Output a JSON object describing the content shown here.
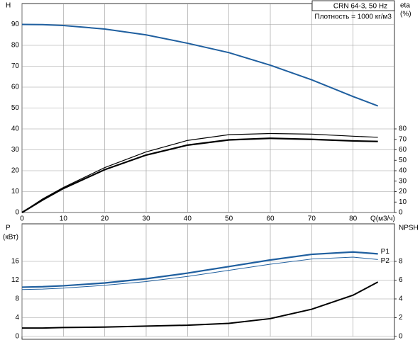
{
  "chart_data": [
    {
      "type": "line",
      "title": "CRN 64-3, 50 Hz",
      "subtitle": "Плотность = 1000 кг/м3",
      "y_label": "H",
      "y2_label": "eta",
      "y2_unit": "(%)",
      "x_label": "Q(м3/ч)",
      "x": [
        0,
        5,
        10,
        20,
        30,
        40,
        50,
        60,
        70,
        80,
        86
      ],
      "xlim": [
        0,
        90
      ],
      "xticks": [
        0,
        10,
        20,
        30,
        40,
        50,
        60,
        70,
        80
      ],
      "ylim": [
        0,
        100
      ],
      "yticks": [
        0,
        10,
        20,
        30,
        40,
        50,
        60,
        70,
        80,
        90
      ],
      "y2lim": [
        0,
        200
      ],
      "y2ticks": [
        0,
        10,
        20,
        30,
        40,
        50,
        60,
        70,
        80
      ],
      "grid": true,
      "series": [
        {
          "color": "#1f5f9f",
          "width": 2,
          "values": [
            90,
            89.9,
            89.5,
            87.8,
            85,
            81,
            76.5,
            70.5,
            63.5,
            55.5,
            51
          ]
        },
        {
          "color": "#000000",
          "width": 1.2,
          "axis": "y2",
          "values": [
            0,
            13,
            24,
            43,
            58,
            69,
            74.5,
            75.6,
            75,
            73,
            72
          ]
        },
        {
          "color": "#000000",
          "width": 2.2,
          "axis": "y2",
          "values": [
            0,
            12,
            23,
            41,
            55,
            64.5,
            69.5,
            71,
            70,
            68.5,
            68
          ]
        }
      ]
    },
    {
      "type": "line",
      "y_label": "P",
      "y_unit": "(кВт)",
      "y2_label": "NPSH",
      "x": [
        0,
        5,
        10,
        20,
        30,
        40,
        50,
        60,
        70,
        80,
        86
      ],
      "xlim": [
        0,
        90
      ],
      "ylim": [
        0,
        24
      ],
      "yticks": [
        0,
        4,
        8,
        12,
        16
      ],
      "y2lim": [
        0,
        12
      ],
      "y2ticks": [
        0,
        2,
        4,
        6,
        8
      ],
      "grid": true,
      "series": [
        {
          "name": "P1",
          "color": "#1f5f9f",
          "width": 2.2,
          "values": [
            10.5,
            10.6,
            10.8,
            11.4,
            12.3,
            13.5,
            14.9,
            16.3,
            17.5,
            18,
            17.6
          ]
        },
        {
          "name": "P2",
          "color": "#1f5f9f",
          "width": 1,
          "values": [
            10,
            10.1,
            10.3,
            10.9,
            11.7,
            12.8,
            14.1,
            15.4,
            16.5,
            16.9,
            16.4
          ]
        },
        {
          "color": "#000000",
          "width": 2,
          "axis": "y2",
          "values": [
            0.9,
            0.9,
            0.95,
            1,
            1.1,
            1.2,
            1.4,
            1.9,
            2.9,
            4.4,
            5.8
          ]
        }
      ]
    }
  ]
}
